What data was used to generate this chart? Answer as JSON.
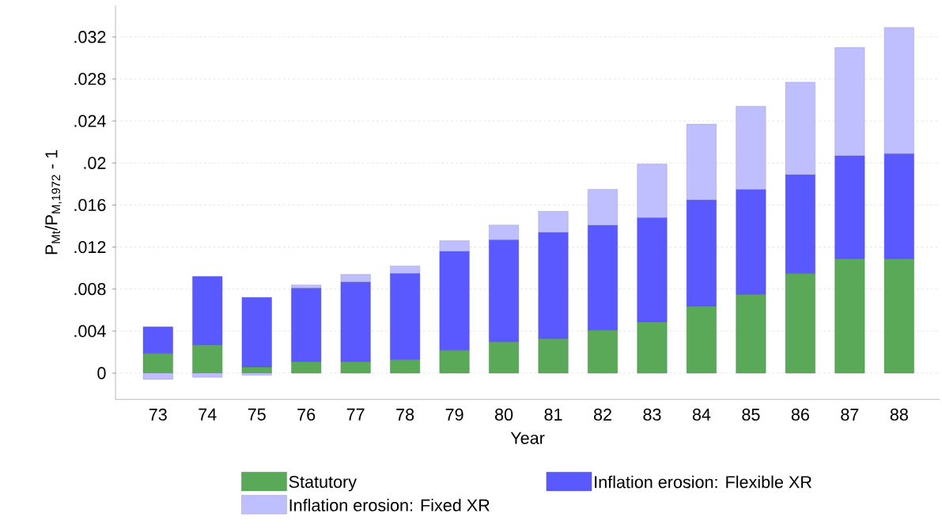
{
  "chart_data": {
    "type": "bar",
    "stacked": true,
    "xlabel": "Year",
    "ylabel": "P$_{Mt}$/P$_{M,1972}$ - 1",
    "categories": [
      "73",
      "74",
      "75",
      "76",
      "77",
      "78",
      "79",
      "80",
      "81",
      "82",
      "83",
      "84",
      "85",
      "86",
      "87",
      "88"
    ],
    "series": [
      {
        "name": "Statutory",
        "color": "#59a959",
        "values": [
          0.0019,
          0.0027,
          0.0006,
          0.0011,
          0.0011,
          0.0013,
          0.0022,
          0.003,
          0.0033,
          0.0041,
          0.0049,
          0.0064,
          0.0075,
          0.0095,
          0.0109,
          0.0109
        ]
      },
      {
        "name": "Inflation erosion: Flexible XR",
        "color": "#5959ff",
        "values": [
          0.0025,
          0.0065,
          0.0066,
          0.007,
          0.0076,
          0.0082,
          0.0094,
          0.0097,
          0.0101,
          0.01,
          0.0099,
          0.0101,
          0.01,
          0.0094,
          0.0098,
          0.01
        ]
      },
      {
        "name": "Inflation erosion: Fixed XR",
        "color": "#bfbfff",
        "values": [
          -0.0006,
          -0.0004,
          -0.0002,
          0.0003,
          0.0007,
          0.0007,
          0.001,
          0.0014,
          0.002,
          0.0034,
          0.0051,
          0.0072,
          0.0079,
          0.0088,
          0.0103,
          0.012
        ]
      }
    ],
    "ylim": [
      -0.0025,
      0.035
    ],
    "yticks": [
      0,
      {
        "value": 0.004,
        "label": ".004"
      },
      {
        "value": 0.008,
        "label": ".008"
      },
      {
        "value": 0.012,
        "label": ".012"
      },
      {
        "value": 0.016,
        "label": ".016"
      },
      {
        "value": 0.02,
        "label": ".02"
      },
      {
        "value": 0.024,
        "label": ".024"
      },
      {
        "value": 0.028,
        "label": ".028"
      },
      {
        "value": 0.032,
        "label": ".032"
      }
    ],
    "grid": "y",
    "legend": "bottom"
  }
}
